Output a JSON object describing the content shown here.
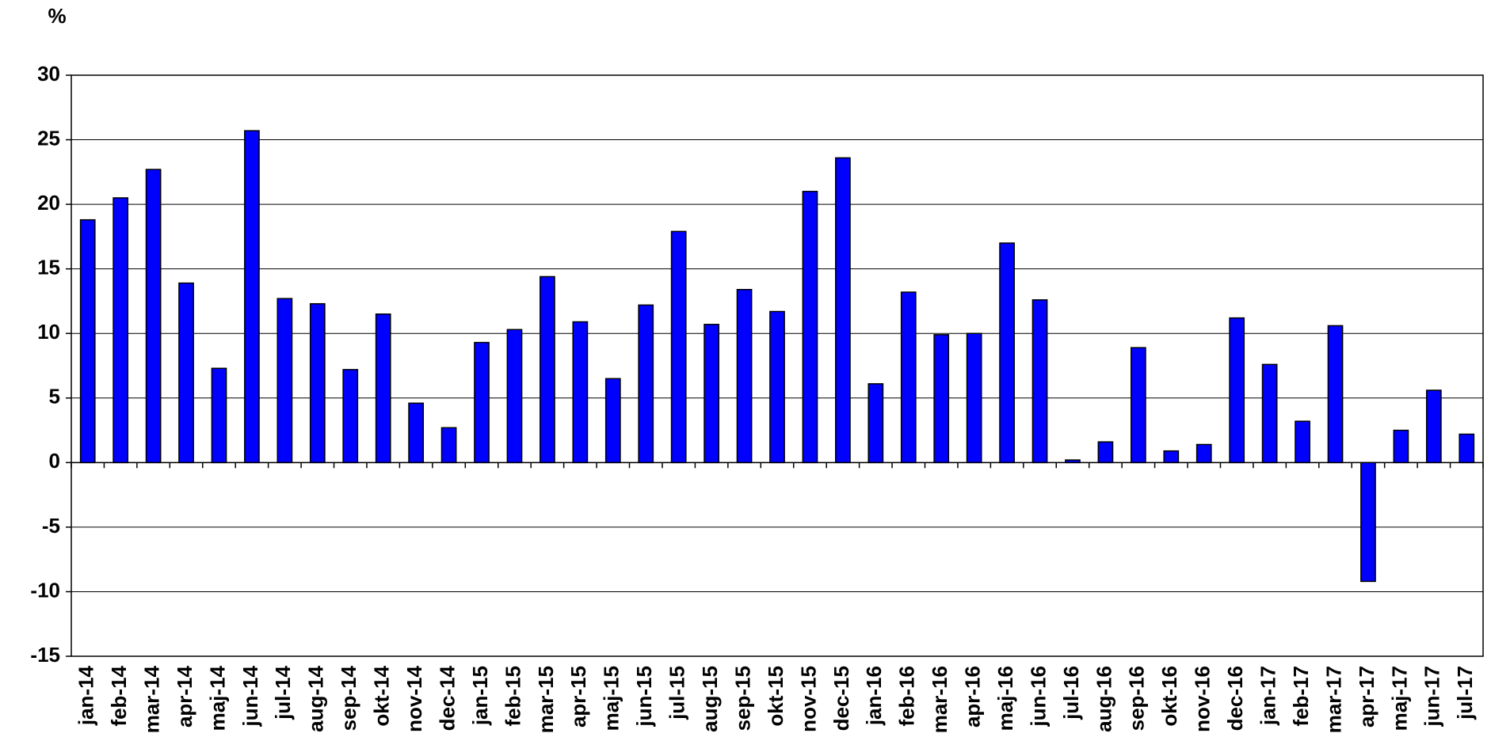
{
  "chart_data": {
    "type": "bar",
    "y_label": "%",
    "categories": [
      "jan-14",
      "feb-14",
      "mar-14",
      "apr-14",
      "maj-14",
      "jun-14",
      "jul-14",
      "aug-14",
      "sep-14",
      "okt-14",
      "nov-14",
      "dec-14",
      "jan-15",
      "feb-15",
      "mar-15",
      "apr-15",
      "maj-15",
      "jun-15",
      "jul-15",
      "aug-15",
      "sep-15",
      "okt-15",
      "nov-15",
      "dec-15",
      "jan-16",
      "feb-16",
      "mar-16",
      "apr-16",
      "maj-16",
      "jun-16",
      "jul-16",
      "aug-16",
      "sep-16",
      "okt-16",
      "nov-16",
      "dec-16",
      "jan-17",
      "feb-17",
      "mar-17",
      "apr-17",
      "maj-17",
      "jun-17",
      "jul-17"
    ],
    "values": [
      18.8,
      20.5,
      22.7,
      13.9,
      7.3,
      25.7,
      12.7,
      12.3,
      7.2,
      11.5,
      4.6,
      2.7,
      9.3,
      10.3,
      14.4,
      10.9,
      6.5,
      12.2,
      17.9,
      10.7,
      13.4,
      11.7,
      21.0,
      23.6,
      6.1,
      13.2,
      9.9,
      10.0,
      17.0,
      12.6,
      0.2,
      1.6,
      8.9,
      0.9,
      1.4,
      11.2,
      7.6,
      3.2,
      10.6,
      -9.2,
      2.5,
      5.6,
      2.2
    ],
    "color": "#0000ff",
    "ylim": [
      -15,
      30
    ],
    "yticks": [
      -15,
      -10,
      -5,
      0,
      5,
      10,
      15,
      20,
      25,
      30
    ],
    "grid": true
  }
}
